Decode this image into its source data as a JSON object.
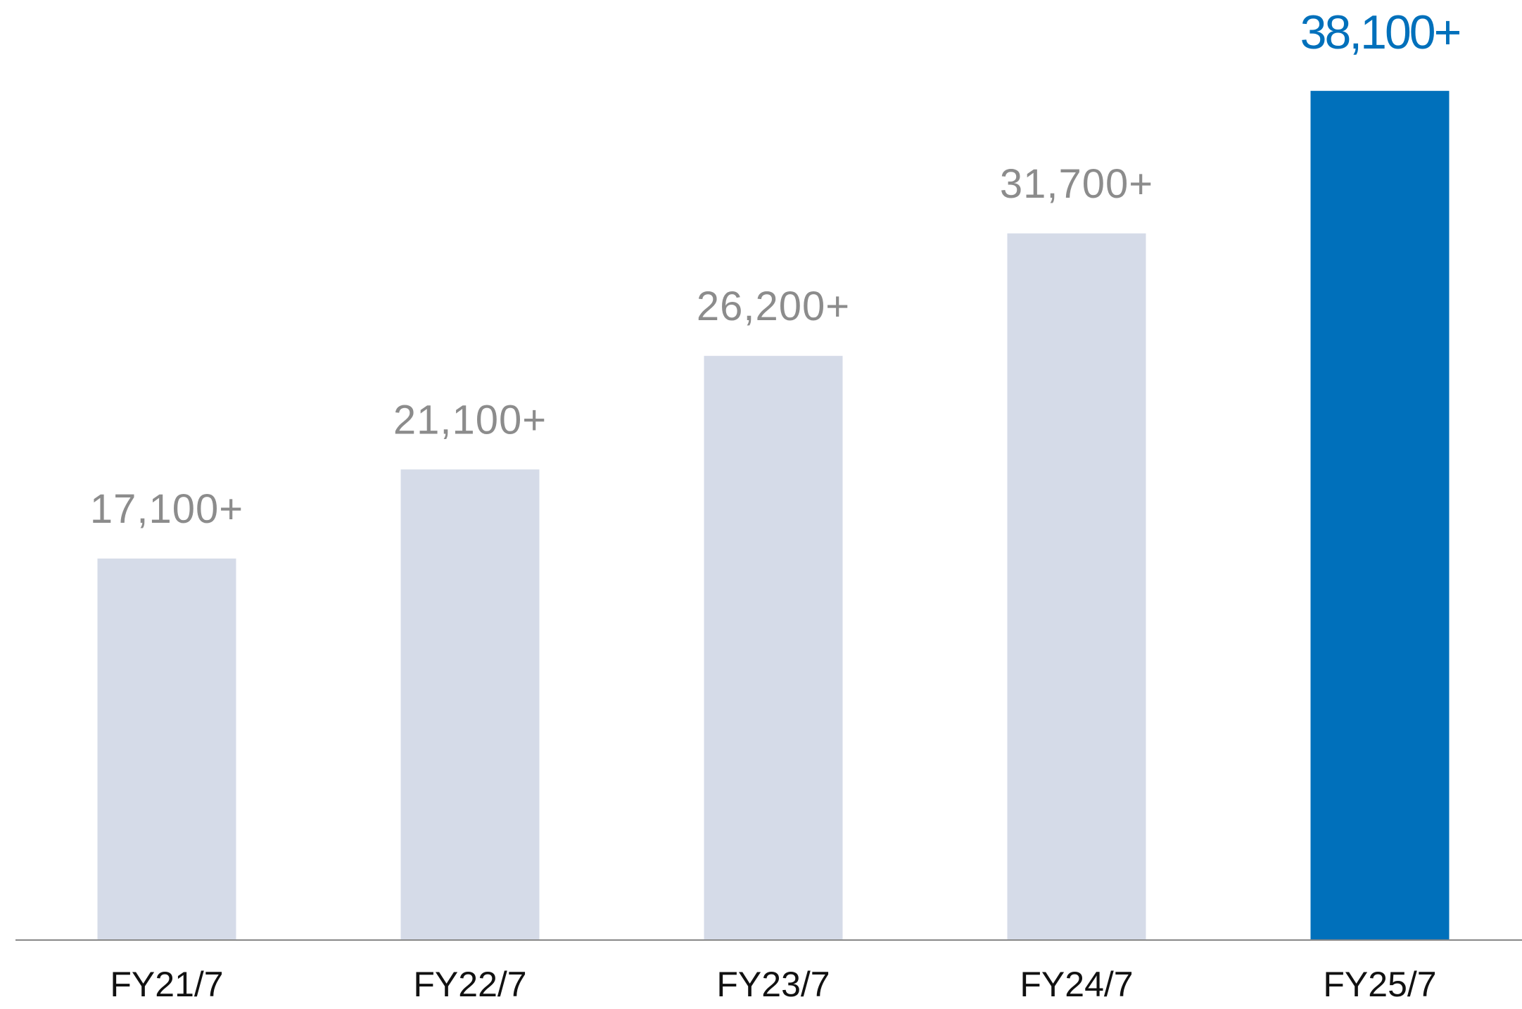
{
  "chart_data": {
    "type": "bar",
    "categories": [
      "FY21/7",
      "FY22/7",
      "FY23/7",
      "FY24/7",
      "FY25/7"
    ],
    "values": [
      17100,
      21100,
      26200,
      31700,
      38100
    ],
    "value_labels": [
      "17,100+",
      "21,100+",
      "26,200+",
      "31,700+",
      "38,100+"
    ],
    "colors": [
      "#d5dbe8",
      "#d5dbe8",
      "#d5dbe8",
      "#d5dbe8",
      "#0070bb"
    ],
    "label_colors": [
      "#8c8c8c",
      "#8c8c8c",
      "#8c8c8c",
      "#8c8c8c",
      "#0070bb"
    ],
    "ylim": [
      0,
      40000
    ]
  }
}
